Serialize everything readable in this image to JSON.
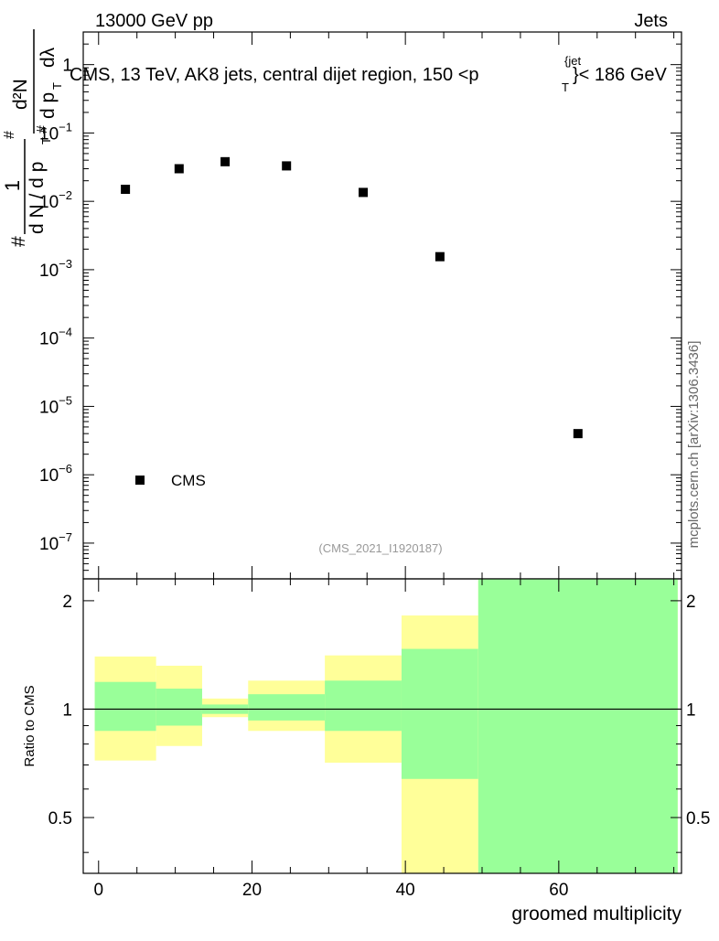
{
  "header": {
    "left": "13000 GeV pp",
    "right": "Jets"
  },
  "watermark": "mcplots.cern.ch [arXiv:1306.3436]",
  "analysis_tag": "(CMS_2021_I1920187)",
  "colors": {
    "data_marker": "#000000",
    "band_inner": "#99ff99",
    "band_outer": "#ffff99",
    "ref_line": "#000000",
    "tag_text": "#999999"
  },
  "chart_data": [
    {
      "type": "scatter",
      "title": "CMS, 13 TeV, AK8 jets, central dijet region, 150 <p_T^{jet}< 186 GeV",
      "title_parts": {
        "main": "CMS, 13 TeV, AK8 jets, central dijet region, 150 <p",
        "sub": "T",
        "sup": "{jet",
        "tail": "}< 186 GeV"
      },
      "ylabel": "1/(dN/dp_T) d²N/(dp_T dλ)",
      "ylabel_parts": {
        "prefix": "#",
        "one": "1",
        "den": "d N / d p",
        "den_sub": "T",
        "num": "d²N",
        "num_den": "d p",
        "num_den_sub": "T",
        "num_den_tail": "dλ",
        "hash": "#"
      },
      "y_scale": "log",
      "ylim": [
        3e-08,
        3
      ],
      "xlim": [
        -2,
        76
      ],
      "y_ticks": [
        {
          "value": 1,
          "mant": "1",
          "exp": ""
        },
        {
          "value": 0.1,
          "mant": "10",
          "exp": "−1"
        },
        {
          "value": 0.01,
          "mant": "10",
          "exp": "−2"
        },
        {
          "value": 0.001,
          "mant": "10",
          "exp": "−3"
        },
        {
          "value": 0.0001,
          "mant": "10",
          "exp": "−4"
        },
        {
          "value": 1e-05,
          "mant": "10",
          "exp": "−5"
        },
        {
          "value": 1e-06,
          "mant": "10",
          "exp": "−6"
        },
        {
          "value": 1e-07,
          "mant": "10",
          "exp": "−7"
        }
      ],
      "series": [
        {
          "name": "CMS",
          "points": [
            {
              "x": 3.5,
              "y": 0.015
            },
            {
              "x": 10.5,
              "y": 0.03
            },
            {
              "x": 16.5,
              "y": 0.038
            },
            {
              "x": 24.5,
              "y": 0.033
            },
            {
              "x": 34.5,
              "y": 0.0135
            },
            {
              "x": 44.5,
              "y": 0.00155
            },
            {
              "x": 62.5,
              "y": 4e-06
            }
          ]
        }
      ],
      "legend": {
        "label": "CMS",
        "position": "bottom-left"
      }
    },
    {
      "type": "area",
      "ylabel": "Ratio to CMS",
      "xlabel": "groomed multiplicity",
      "xlim": [
        -2,
        76
      ],
      "ylim": [
        0.35,
        2.3
      ],
      "x_ticks": [
        0,
        20,
        40,
        60
      ],
      "y_ticks": [
        0.5,
        1,
        2
      ],
      "reference_line": 1,
      "bands": [
        {
          "x0": -0.5,
          "x1": 7.5,
          "outer_lo": 0.72,
          "outer_hi": 1.4,
          "inner_lo": 0.87,
          "inner_hi": 1.19
        },
        {
          "x0": 7.5,
          "x1": 13.5,
          "outer_lo": 0.79,
          "outer_hi": 1.32,
          "inner_lo": 0.9,
          "inner_hi": 1.14
        },
        {
          "x0": 13.5,
          "x1": 19.5,
          "outer_lo": 0.95,
          "outer_hi": 1.07,
          "inner_lo": 0.97,
          "inner_hi": 1.03
        },
        {
          "x0": 19.5,
          "x1": 29.5,
          "outer_lo": 0.87,
          "outer_hi": 1.2,
          "inner_lo": 0.93,
          "inner_hi": 1.1
        },
        {
          "x0": 29.5,
          "x1": 39.5,
          "outer_lo": 0.71,
          "outer_hi": 1.41,
          "inner_lo": 0.87,
          "inner_hi": 1.2
        },
        {
          "x0": 39.5,
          "x1": 49.5,
          "outer_lo": 0.35,
          "outer_hi": 1.82,
          "inner_lo": 0.64,
          "inner_hi": 1.47
        },
        {
          "x0": 49.5,
          "x1": 75.5,
          "outer_lo": 0.35,
          "outer_hi": 2.3,
          "inner_lo": 0.35,
          "inner_hi": 2.3
        }
      ]
    }
  ]
}
